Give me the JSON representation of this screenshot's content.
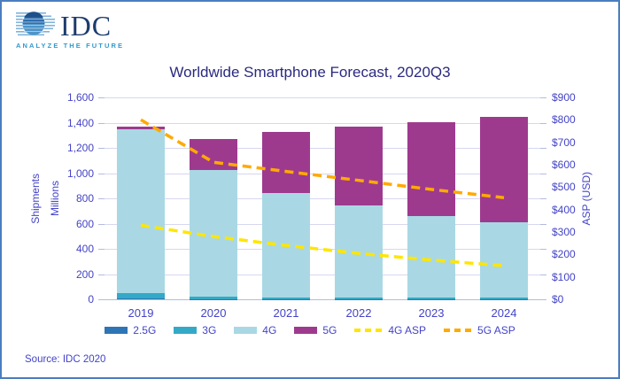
{
  "logo": {
    "brand": "IDC",
    "tagline": "ANALYZE THE FUTURE"
  },
  "title": "Worldwide Smartphone Forecast, 2020Q3",
  "source": "Source: IDC 2020",
  "axes": {
    "left_title_line1": "Shipments",
    "left_title_line2": "Millions",
    "right_title": "ASP (USD)"
  },
  "colors": {
    "border": "#4a7ec0",
    "text": "#4343c8",
    "title_text": "#2a2a80",
    "gridline": "#d7d7f0",
    "bar_2_5g": "#2e75b6",
    "bar_3g": "#33a9c7",
    "bar_4g": "#a9d8e4",
    "bar_5g": "#9e3a8e",
    "line_4g_asp": "#ffe600",
    "line_5g_asp": "#ffaa00"
  },
  "chart_data": {
    "type": "bar",
    "subtype": "stacked-bars-with-dashed-lines",
    "title": "Worldwide Smartphone Forecast, 2020Q3",
    "categories": [
      "2019",
      "2020",
      "2021",
      "2022",
      "2023",
      "2024"
    ],
    "series": [
      {
        "name": "2.5G",
        "type": "bar",
        "axis": "left",
        "color": "#2e75b6",
        "values": [
          5,
          3,
          2,
          1,
          1,
          1
        ]
      },
      {
        "name": "3G",
        "type": "bar",
        "axis": "left",
        "color": "#33a9c7",
        "values": [
          45,
          20,
          15,
          14,
          12,
          10
        ]
      },
      {
        "name": "4G",
        "type": "bar",
        "axis": "left",
        "color": "#a9d8e4",
        "values": [
          1300,
          1004,
          823,
          726,
          647,
          597
        ]
      },
      {
        "name": "5G",
        "type": "bar",
        "axis": "left",
        "color": "#9e3a8e",
        "values": [
          20,
          240,
          487,
          625,
          745,
          835
        ]
      }
    ],
    "lines": [
      {
        "name": "4G ASP",
        "type": "line",
        "style": "dashed",
        "axis": "right",
        "color": "#ffe600",
        "values": [
          330,
          280,
          240,
          205,
          175,
          150
        ]
      },
      {
        "name": "5G ASP",
        "type": "line",
        "style": "dashed",
        "axis": "right",
        "color": "#ffaa00",
        "values": [
          800,
          611,
          570,
          530,
          490,
          453
        ]
      }
    ],
    "ylabel_left": "Shipments Millions",
    "ylabel_right": "ASP (USD)",
    "ylim_left": [
      0,
      1600
    ],
    "ytick_step_left": 200,
    "ylim_right": [
      0,
      900
    ],
    "ytick_step_right": 100,
    "grid": true,
    "legend_position": "bottom"
  }
}
